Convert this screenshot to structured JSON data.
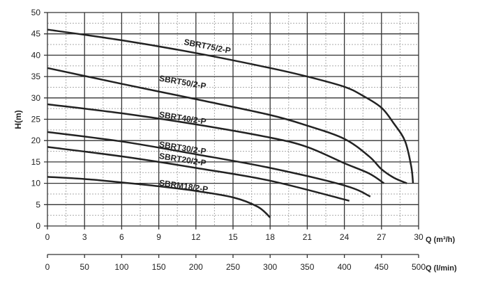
{
  "chart_data": {
    "type": "line",
    "xlabel": "Q (m³/h)",
    "ylabel": "H(m)",
    "x2label": "Q (l/min)",
    "xlim": [
      0,
      30
    ],
    "ylim": [
      0,
      50
    ],
    "x2lim": [
      0,
      500
    ],
    "xticks": [
      "0",
      "3",
      "6",
      "9",
      "12",
      "15",
      "18",
      "21",
      "24",
      "27",
      "30"
    ],
    "yticks": [
      "0",
      "5",
      "10",
      "15",
      "20",
      "25",
      "30",
      "35",
      "40",
      "45",
      "50"
    ],
    "x2ticks": [
      "0",
      "50",
      "100",
      "150",
      "200",
      "250",
      "300",
      "350",
      "400",
      "450",
      "500"
    ],
    "grid": true,
    "series": [
      {
        "name": "SBRT75/2-P",
        "x": [
          0,
          6,
          12,
          18,
          21,
          24,
          25.5,
          27,
          28,
          28.9,
          29.4,
          29.55
        ],
        "y": [
          46,
          43.5,
          40.5,
          37,
          35,
          32.6,
          30.5,
          27.7,
          24,
          19.9,
          14,
          10
        ]
      },
      {
        "name": "SBRT50/2-P",
        "x": [
          0,
          6,
          12,
          18,
          21,
          24,
          26,
          27,
          28,
          29.05
        ],
        "y": [
          37,
          33.3,
          29.7,
          26,
          23.5,
          20.4,
          16.3,
          13.3,
          11.3,
          10
        ]
      },
      {
        "name": "SBRT40/2-P",
        "x": [
          0,
          6,
          12,
          18,
          21,
          24,
          26,
          27.2
        ],
        "y": [
          28.5,
          26.4,
          23.8,
          20.7,
          18.5,
          14.7,
          12.3,
          10
        ]
      },
      {
        "name": "SBRT30/2-P",
        "x": [
          0,
          6,
          12,
          18,
          24,
          26.1
        ],
        "y": [
          22,
          19.8,
          16.8,
          13.6,
          9.5,
          6.9
        ]
      },
      {
        "name": "SBRT20/2-P",
        "x": [
          0,
          6,
          12,
          18,
          24.4
        ],
        "y": [
          18.5,
          16.3,
          13.6,
          10.6,
          5.9
        ]
      },
      {
        "name": "SBRM18/2-P",
        "x": [
          0,
          3,
          6,
          9,
          12,
          15,
          17,
          18
        ],
        "y": [
          11.5,
          11,
          10.2,
          9.3,
          8.2,
          6.7,
          4.5,
          2
        ]
      }
    ]
  }
}
